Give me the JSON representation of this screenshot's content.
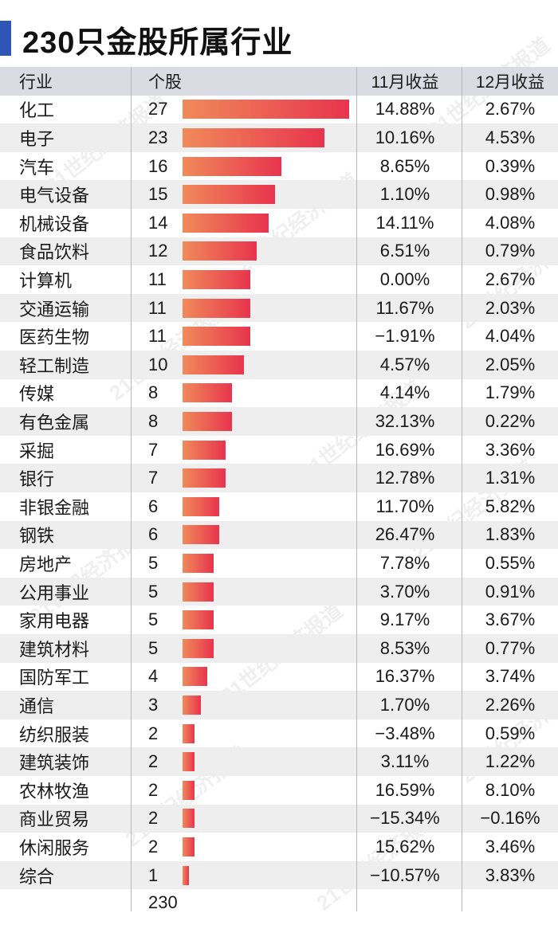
{
  "title": "230只金股所属行业",
  "watermark": "21世纪经济报道",
  "headers": {
    "industry": "行业",
    "count": "个股",
    "nov": "11月收益",
    "dec": "12月收益"
  },
  "total": "230",
  "colors": {
    "title_accent": "#2f56b5",
    "bar_start": "#f08a5a",
    "bar_end": "#e8344d",
    "header_bg": "#d9dde3",
    "alt_row_bg": "#eeeeee"
  },
  "chart_data": {
    "type": "table",
    "columns": [
      "行业",
      "个股",
      "11月收益",
      "12月收益"
    ],
    "rows": [
      {
        "industry": "化工",
        "count": 27,
        "nov": "14.88%",
        "dec": "2.67%"
      },
      {
        "industry": "电子",
        "count": 23,
        "nov": "10.16%",
        "dec": "4.53%"
      },
      {
        "industry": "汽车",
        "count": 16,
        "nov": "8.65%",
        "dec": "0.39%"
      },
      {
        "industry": "电气设备",
        "count": 15,
        "nov": "1.10%",
        "dec": "0.98%"
      },
      {
        "industry": "机械设备",
        "count": 14,
        "nov": "14.11%",
        "dec": "4.08%"
      },
      {
        "industry": "食品饮料",
        "count": 12,
        "nov": "6.51%",
        "dec": "0.79%"
      },
      {
        "industry": "计算机",
        "count": 11,
        "nov": "0.00%",
        "dec": "2.67%"
      },
      {
        "industry": "交通运输",
        "count": 11,
        "nov": "11.67%",
        "dec": "2.03%"
      },
      {
        "industry": "医药生物",
        "count": 11,
        "nov": "-1.91%",
        "dec": "4.04%"
      },
      {
        "industry": "轻工制造",
        "count": 10,
        "nov": "4.57%",
        "dec": "2.05%"
      },
      {
        "industry": "传媒",
        "count": 8,
        "nov": "4.14%",
        "dec": "1.79%"
      },
      {
        "industry": "有色金属",
        "count": 8,
        "nov": "32.13%",
        "dec": "0.22%"
      },
      {
        "industry": "采掘",
        "count": 7,
        "nov": "16.69%",
        "dec": "3.36%"
      },
      {
        "industry": "银行",
        "count": 7,
        "nov": "12.78%",
        "dec": "1.31%"
      },
      {
        "industry": "非银金融",
        "count": 6,
        "nov": "11.70%",
        "dec": "5.82%"
      },
      {
        "industry": "钢铁",
        "count": 6,
        "nov": "26.47%",
        "dec": "1.83%"
      },
      {
        "industry": "房地产",
        "count": 5,
        "nov": "7.78%",
        "dec": "0.55%"
      },
      {
        "industry": "公用事业",
        "count": 5,
        "nov": "3.70%",
        "dec": "0.91%"
      },
      {
        "industry": "家用电器",
        "count": 5,
        "nov": "9.17%",
        "dec": "3.67%"
      },
      {
        "industry": "建筑材料",
        "count": 5,
        "nov": "8.53%",
        "dec": "0.77%"
      },
      {
        "industry": "国防军工",
        "count": 4,
        "nov": "16.37%",
        "dec": "3.74%"
      },
      {
        "industry": "通信",
        "count": 3,
        "nov": "1.70%",
        "dec": "2.26%"
      },
      {
        "industry": "纺织服装",
        "count": 2,
        "nov": "-3.48%",
        "dec": "0.59%"
      },
      {
        "industry": "建筑装饰",
        "count": 2,
        "nov": "3.11%",
        "dec": "1.22%"
      },
      {
        "industry": "农林牧渔",
        "count": 2,
        "nov": "16.59%",
        "dec": "8.10%"
      },
      {
        "industry": "商业贸易",
        "count": 2,
        "nov": "-15.34%",
        "dec": "-0.16%"
      },
      {
        "industry": "休闲服务",
        "count": 2,
        "nov": "15.62%",
        "dec": "3.46%"
      },
      {
        "industry": "综合",
        "count": 1,
        "nov": "-10.57%",
        "dec": "3.83%"
      }
    ]
  }
}
